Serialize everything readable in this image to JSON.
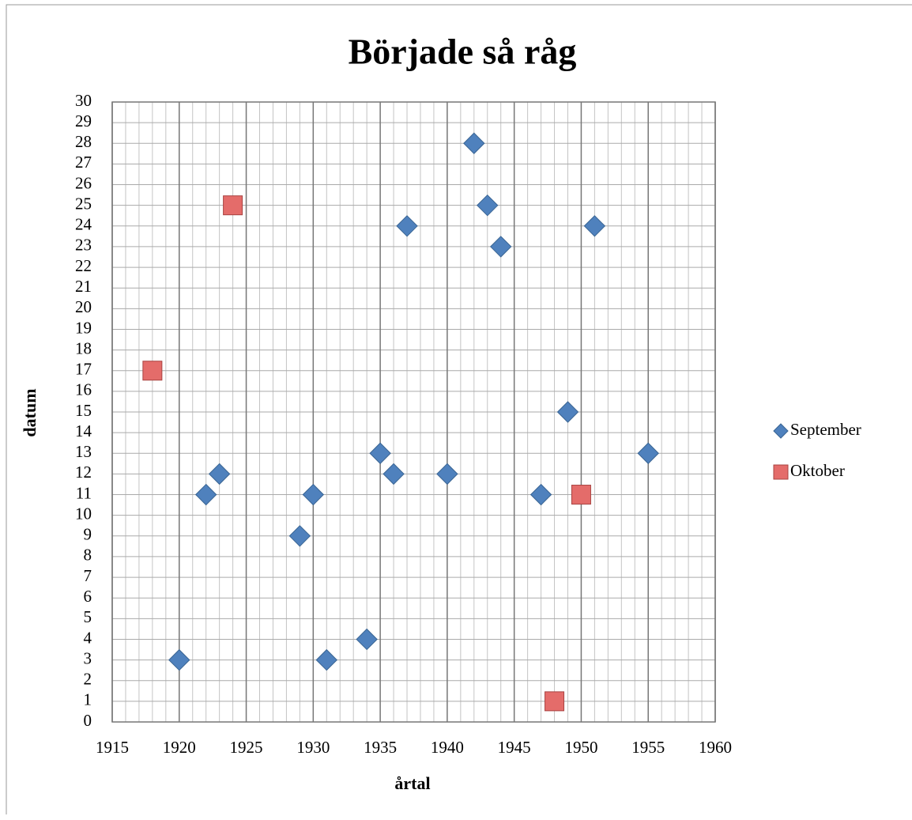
{
  "chart_data": {
    "type": "scatter",
    "title": "Började så råg",
    "x_label": "årtal",
    "y_label": "datum",
    "series": [
      {
        "name": "September",
        "color": "#4f81bd",
        "marker": "diamond",
        "x": [
          1920,
          1922,
          1923,
          1929,
          1930,
          1931,
          1934,
          1935,
          1936,
          1937,
          1940,
          1942,
          1943,
          1944,
          1947,
          1949,
          1951,
          1955
        ],
        "values": [
          3,
          11,
          12,
          9,
          11,
          3,
          4,
          13,
          12,
          24,
          12,
          28,
          25,
          23,
          11,
          15,
          24,
          13
        ]
      },
      {
        "name": "Oktober",
        "color": "#e46c6a",
        "marker": "square",
        "x": [
          1918,
          1924,
          1948,
          1950
        ],
        "values": [
          17,
          25,
          1,
          11
        ]
      }
    ],
    "xlim": [
      1915,
      1960
    ],
    "xticks": [
      1915,
      1920,
      1925,
      1930,
      1935,
      1940,
      1945,
      1950,
      1955,
      1960
    ],
    "ylim": [
      0,
      30
    ],
    "yticks": [
      0,
      1,
      2,
      3,
      4,
      5,
      6,
      7,
      8,
      9,
      10,
      11,
      12,
      13,
      14,
      15,
      16,
      17,
      18,
      19,
      20,
      21,
      22,
      23,
      24,
      25,
      26,
      27,
      28,
      29,
      30
    ],
    "x_minor_interval": 1,
    "grid": true,
    "legend": "right"
  }
}
